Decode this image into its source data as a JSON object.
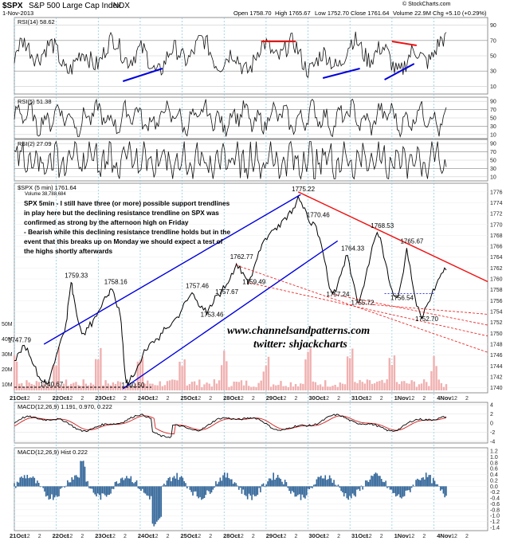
{
  "header": {
    "symbol": "$SPX",
    "name": "S&P 500 Large Cap Index",
    "exchange": "INDX",
    "date": "1-Nov-2013",
    "open": "Open 1758.70",
    "high": "High 1765.67",
    "low": "Low 1752.70",
    "close": "Close 1761.64",
    "volume": "Volume 22.9M",
    "change": "Chg +5.10 (+0.29%)",
    "brand": "© StockCharts.com"
  },
  "panels": {
    "rsi14": {
      "label": "RSI(14) 58.62",
      "levels": [
        "90",
        "70",
        "50",
        "30",
        "10"
      ]
    },
    "rsi5": {
      "label": "RSI(5) 51.38",
      "levels": [
        "90",
        "70",
        "50",
        "30",
        "10"
      ]
    },
    "rsi2": {
      "label": "RSI(2) 27.09",
      "levels": [
        "90",
        "70",
        "50",
        "30",
        "10"
      ]
    },
    "price": {
      "label": "$SPX (5 min) 1761.64",
      "volume_label": "Volume 38,788,684"
    },
    "macd": {
      "label": "MACD(12,26,9) 1.191, 0.970, 0.222",
      "levels": [
        "4",
        "2",
        "0",
        "-2",
        "-4"
      ]
    },
    "hist": {
      "label": "MACD(12,26,9) Hist 0.222",
      "levels": [
        "1.2",
        "1.0",
        "0.8",
        "0.6",
        "0.4",
        "0.2",
        "0.0",
        "-0.2",
        "-0.4",
        "-0.6",
        "-0.8",
        "-1.0",
        "-1.2",
        "-1.4"
      ]
    }
  },
  "annotation": {
    "lines": [
      "SPX 5min - I still have three (or more) possible support trendlines",
      "in play here but the declining resistance trendline on SPX was",
      "confirmed as strong by the afternoon high on Friday",
      "- Bearish while this declining resistance trendline holds but in the",
      "event that this breaks up on Monday we should expect a test of",
      "the highs shortly afterwards"
    ],
    "watermark1": "www.channelsandpatterns.com",
    "watermark2": "twitter: shjackcharts"
  },
  "chart_data": {
    "type": "line",
    "symbol": "$SPX",
    "interval": "5 min",
    "y_axis_price": {
      "ticks": [
        1740,
        1742,
        1744,
        1746,
        1748,
        1750,
        1752,
        1754,
        1756,
        1758,
        1760,
        1762,
        1764,
        1766,
        1768,
        1770,
        1772,
        1774,
        1776
      ],
      "ylim": [
        1739.5,
        1777
      ]
    },
    "volume_axis": {
      "ticks": [
        "10M",
        "20M",
        "30M",
        "40M",
        "50M"
      ]
    },
    "x_axis": {
      "labels": [
        "21Oct",
        "12",
        "2",
        "22Oct",
        "12",
        "2",
        "23Oct",
        "12",
        "2",
        "24Oct",
        "12",
        "2",
        "25Oct",
        "12",
        "2",
        "28Oct",
        "12",
        "2",
        "29Oct",
        "12",
        "2",
        "30Oct",
        "12",
        "2",
        "31Oct",
        "12",
        "2",
        "1Nov",
        "12",
        "2",
        "4Nov",
        "12",
        "2"
      ]
    },
    "day_labels": [
      "21Oct",
      "22Oct",
      "23Oct",
      "24Oct",
      "25Oct",
      "28Oct",
      "29Oct",
      "30Oct",
      "31Oct",
      "1Nov",
      "4Nov"
    ],
    "price_path": [
      [
        0,
        1745
      ],
      [
        2,
        1746.5
      ],
      [
        4,
        1747.79
      ],
      [
        6,
        1746
      ],
      [
        8,
        1744
      ],
      [
        10,
        1742
      ],
      [
        12,
        1741
      ],
      [
        13,
        1740.67
      ],
      [
        15,
        1743
      ],
      [
        17,
        1746
      ],
      [
        19,
        1749
      ],
      [
        21,
        1752
      ],
      [
        22,
        1756
      ],
      [
        23,
        1759.33
      ],
      [
        24,
        1757
      ],
      [
        26,
        1752
      ],
      [
        28,
        1750
      ],
      [
        30,
        1751
      ],
      [
        32,
        1752.5
      ],
      [
        34,
        1754
      ],
      [
        36,
        1756
      ],
      [
        38,
        1757
      ],
      [
        39,
        1758.16
      ],
      [
        41,
        1756
      ],
      [
        43,
        1753
      ],
      [
        44,
        1748
      ],
      [
        45,
        1742
      ],
      [
        46,
        1740.5
      ],
      [
        48,
        1742
      ],
      [
        50,
        1744
      ],
      [
        52,
        1746
      ],
      [
        54,
        1747
      ],
      [
        56,
        1748.5
      ],
      [
        58,
        1749
      ],
      [
        60,
        1750
      ],
      [
        62,
        1751
      ],
      [
        64,
        1752
      ],
      [
        66,
        1753
      ],
      [
        68,
        1754.5
      ],
      [
        70,
        1756
      ],
      [
        72,
        1757.46
      ],
      [
        74,
        1756
      ],
      [
        76,
        1755
      ],
      [
        78,
        1753.46
      ],
      [
        80,
        1755
      ],
      [
        82,
        1757
      ],
      [
        84,
        1757.67
      ],
      [
        86,
        1759
      ],
      [
        88,
        1761
      ],
      [
        90,
        1762.77
      ],
      [
        92,
        1761
      ],
      [
        94,
        1760
      ],
      [
        95,
        1759.49
      ],
      [
        97,
        1762
      ],
      [
        99,
        1765
      ],
      [
        101,
        1767
      ],
      [
        103,
        1768
      ],
      [
        105,
        1769
      ],
      [
        107,
        1770
      ],
      [
        109,
        1771
      ],
      [
        111,
        1772
      ],
      [
        113,
        1773
      ],
      [
        115,
        1775.22
      ],
      [
        117,
        1773
      ],
      [
        119,
        1771
      ],
      [
        121,
        1770.46
      ],
      [
        123,
        1768
      ],
      [
        125,
        1765
      ],
      [
        127,
        1760
      ],
      [
        129,
        1757.24
      ],
      [
        131,
        1759
      ],
      [
        133,
        1762
      ],
      [
        135,
        1764.33
      ],
      [
        137,
        1760
      ],
      [
        139,
        1755.72
      ],
      [
        141,
        1758
      ],
      [
        143,
        1762
      ],
      [
        145,
        1766
      ],
      [
        147,
        1768.53
      ],
      [
        149,
        1766
      ],
      [
        151,
        1762
      ],
      [
        153,
        1758
      ],
      [
        155,
        1756.54
      ],
      [
        157,
        1760
      ],
      [
        159,
        1765.67
      ],
      [
        161,
        1760
      ],
      [
        163,
        1755
      ],
      [
        165,
        1752.7
      ],
      [
        167,
        1755
      ],
      [
        169,
        1757
      ],
      [
        171,
        1759
      ],
      [
        173,
        1761
      ],
      [
        175,
        1761.64
      ]
    ],
    "price_labels": [
      {
        "value": 1747.79
      },
      {
        "value": 1740.67
      },
      {
        "value": 1759.33
      },
      {
        "value": 1758.16
      },
      {
        "value": 1740.5
      },
      {
        "value": 1757.46
      },
      {
        "value": 1753.46
      },
      {
        "value": 1757.67
      },
      {
        "value": 1762.77
      },
      {
        "value": 1759.49
      },
      {
        "value": 1775.22
      },
      {
        "value": 1770.46
      },
      {
        "value": 1764.33
      },
      {
        "value": 1757.24
      },
      {
        "value": 1755.72
      },
      {
        "value": 1768.53
      },
      {
        "value": 1765.67
      },
      {
        "value": 1756.54
      },
      {
        "value": 1752.7
      }
    ],
    "rsi_levels": [
      90,
      70,
      50,
      30,
      10
    ],
    "macd_ylim": [
      -4,
      4
    ],
    "hist_ylim": [
      -1.4,
      1.2
    ],
    "colors": {
      "price": "#000000",
      "trend_up": "#0000dd",
      "trend_down": "#ee1111",
      "volume": "#f0b0b0",
      "hist": "#336699",
      "rsi_fill": "#4d7a4d",
      "note_text": "#ffffff"
    }
  }
}
